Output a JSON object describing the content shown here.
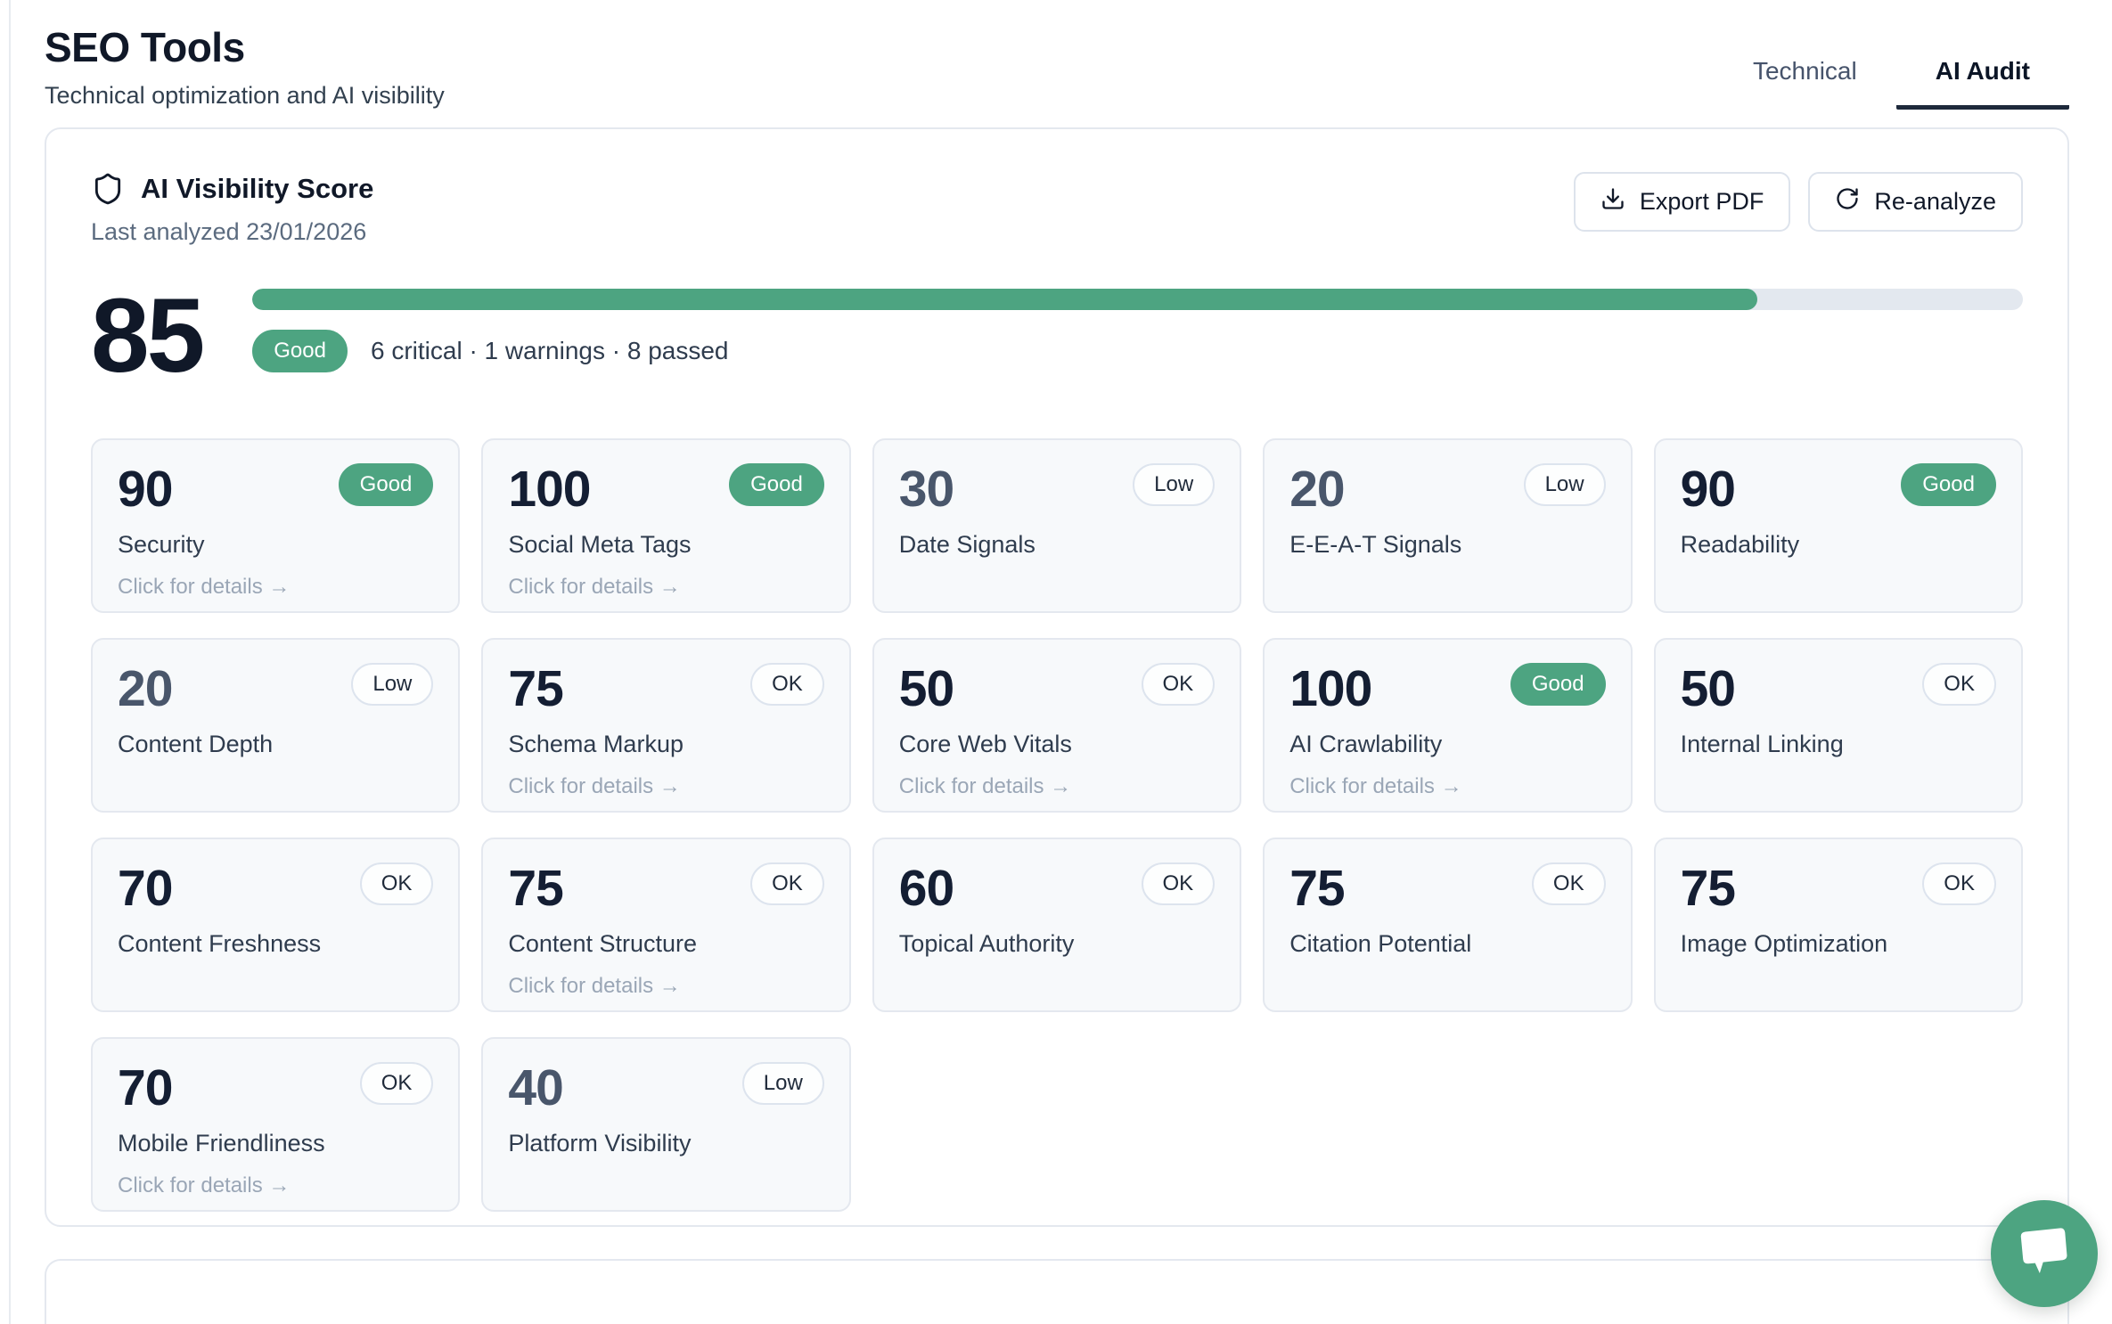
{
  "page": {
    "title": "SEO Tools",
    "subtitle": "Technical optimization and AI visibility"
  },
  "tabs": {
    "technical": "Technical",
    "ai_audit": "AI Audit",
    "active": "AI Audit"
  },
  "panel": {
    "title": "AI Visibility Score",
    "last_analyzed": "Last analyzed 23/01/2026",
    "export_label": "Export PDF",
    "reanalyze_label": "Re-analyze",
    "score": "85",
    "score_status": "Good",
    "summary": "6 critical · 1 warnings · 8 passed",
    "progress_percent": 85
  },
  "cards": [
    {
      "score": "90",
      "status": "Good",
      "label": "Security",
      "details": "Click for details →"
    },
    {
      "score": "100",
      "status": "Good",
      "label": "Social Meta Tags",
      "details": "Click for details →"
    },
    {
      "score": "30",
      "status": "Low",
      "label": "Date Signals"
    },
    {
      "score": "20",
      "status": "Low",
      "label": "E-E-A-T Signals"
    },
    {
      "score": "90",
      "status": "Good",
      "label": "Readability"
    },
    {
      "score": "20",
      "status": "Low",
      "label": "Content Depth"
    },
    {
      "score": "75",
      "status": "OK",
      "label": "Schema Markup",
      "details": "Click for details →"
    },
    {
      "score": "50",
      "status": "OK",
      "label": "Core Web Vitals",
      "details": "Click for details →"
    },
    {
      "score": "100",
      "status": "Good",
      "label": "AI Crawlability",
      "details": "Click for details →"
    },
    {
      "score": "50",
      "status": "OK",
      "label": "Internal Linking"
    },
    {
      "score": "70",
      "status": "OK",
      "label": "Content Freshness"
    },
    {
      "score": "75",
      "status": "OK",
      "label": "Content Structure",
      "details": "Click for details →"
    },
    {
      "score": "60",
      "status": "OK",
      "label": "Topical Authority"
    },
    {
      "score": "75",
      "status": "OK",
      "label": "Citation Potential"
    },
    {
      "score": "75",
      "status": "OK",
      "label": "Image Optimization"
    },
    {
      "score": "70",
      "status": "OK",
      "label": "Mobile Friendliness",
      "details": "Click for details →"
    },
    {
      "score": "40",
      "status": "Low",
      "label": "Platform Visibility"
    }
  ],
  "icons": {
    "shield": "shield-icon",
    "download": "download-icon",
    "refresh": "refresh-icon",
    "chat": "chat-bubble-icon"
  },
  "colors": {
    "accent_green": "#4da481",
    "progress_track": "#e3e8ef",
    "dark_text": "#101828",
    "card_background": "#f7f9fb",
    "border": "#e4e8ef"
  }
}
